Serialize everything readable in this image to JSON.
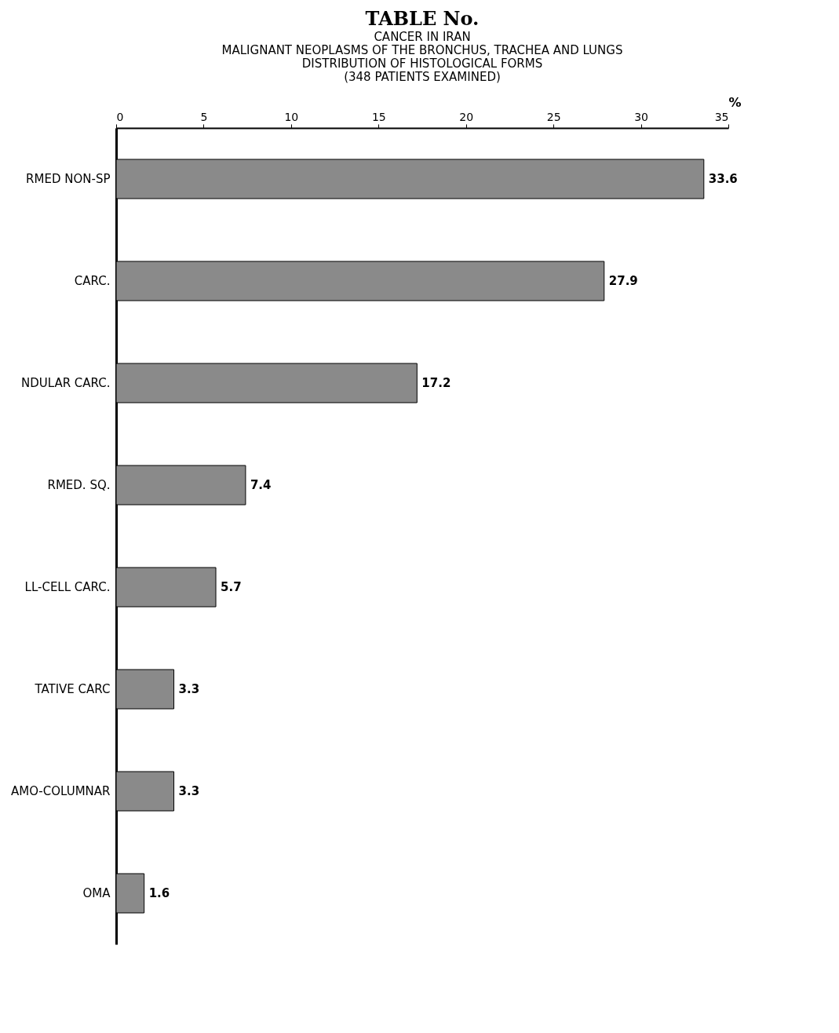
{
  "chart_data": {
    "type": "bar",
    "orientation": "horizontal",
    "title": "TABLE No.",
    "subtitle": "CANCER IN IRAN",
    "annotations": [
      "MALIGNANT NEOPLASMS OF THE BRONCHUS, TRACHEA AND LUNGS",
      "DISTRIBUTION OF HISTOLOGICAL FORMS",
      "(348 PATIENTS EXAMINED)"
    ],
    "xlabel": "%",
    "categories": [
      "RMED NON-SP",
      "CARC.",
      "NDULAR CARC.",
      "RMED. SQ.",
      "LL-CELL CARC.",
      "TATIVE CARC",
      "AMO-COLUMNAR",
      "OMA"
    ],
    "values": [
      33.6,
      27.9,
      17.2,
      7.4,
      5.7,
      3.3,
      3.3,
      1.6
    ],
    "color": "#8a8a8a",
    "data_labels": true,
    "xlim": [
      0,
      35
    ],
    "xticks": [
      0,
      5,
      10,
      15,
      20,
      25,
      30,
      35
    ]
  }
}
